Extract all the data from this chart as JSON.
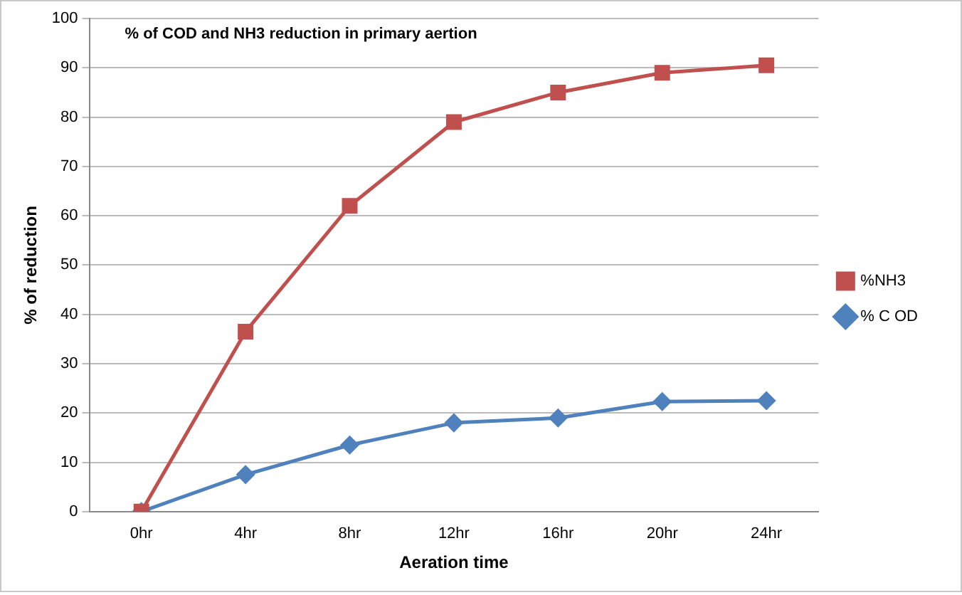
{
  "chart_data": {
    "type": "line",
    "title": "% of COD and NH3 reduction in primary aertion",
    "xlabel": "Aeration time",
    "ylabel": "% of reduction",
    "categories": [
      "0hr",
      "4hr",
      "8hr",
      "12hr",
      "16hr",
      "20hr",
      "24hr"
    ],
    "series": [
      {
        "name": "%NH3",
        "color": "#c0504d",
        "marker": "square",
        "values": [
          0,
          36.5,
          62,
          79,
          85,
          89,
          90.5
        ]
      },
      {
        "name": "% C OD",
        "color": "#4f81bd",
        "marker": "diamond",
        "values": [
          0,
          7.5,
          13.5,
          18,
          19,
          22.3,
          22.5
        ]
      }
    ],
    "ylim": [
      0,
      100
    ],
    "yticks": [
      0,
      10,
      20,
      30,
      40,
      50,
      60,
      70,
      80,
      90,
      100
    ],
    "grid": "y",
    "legend": "right"
  }
}
